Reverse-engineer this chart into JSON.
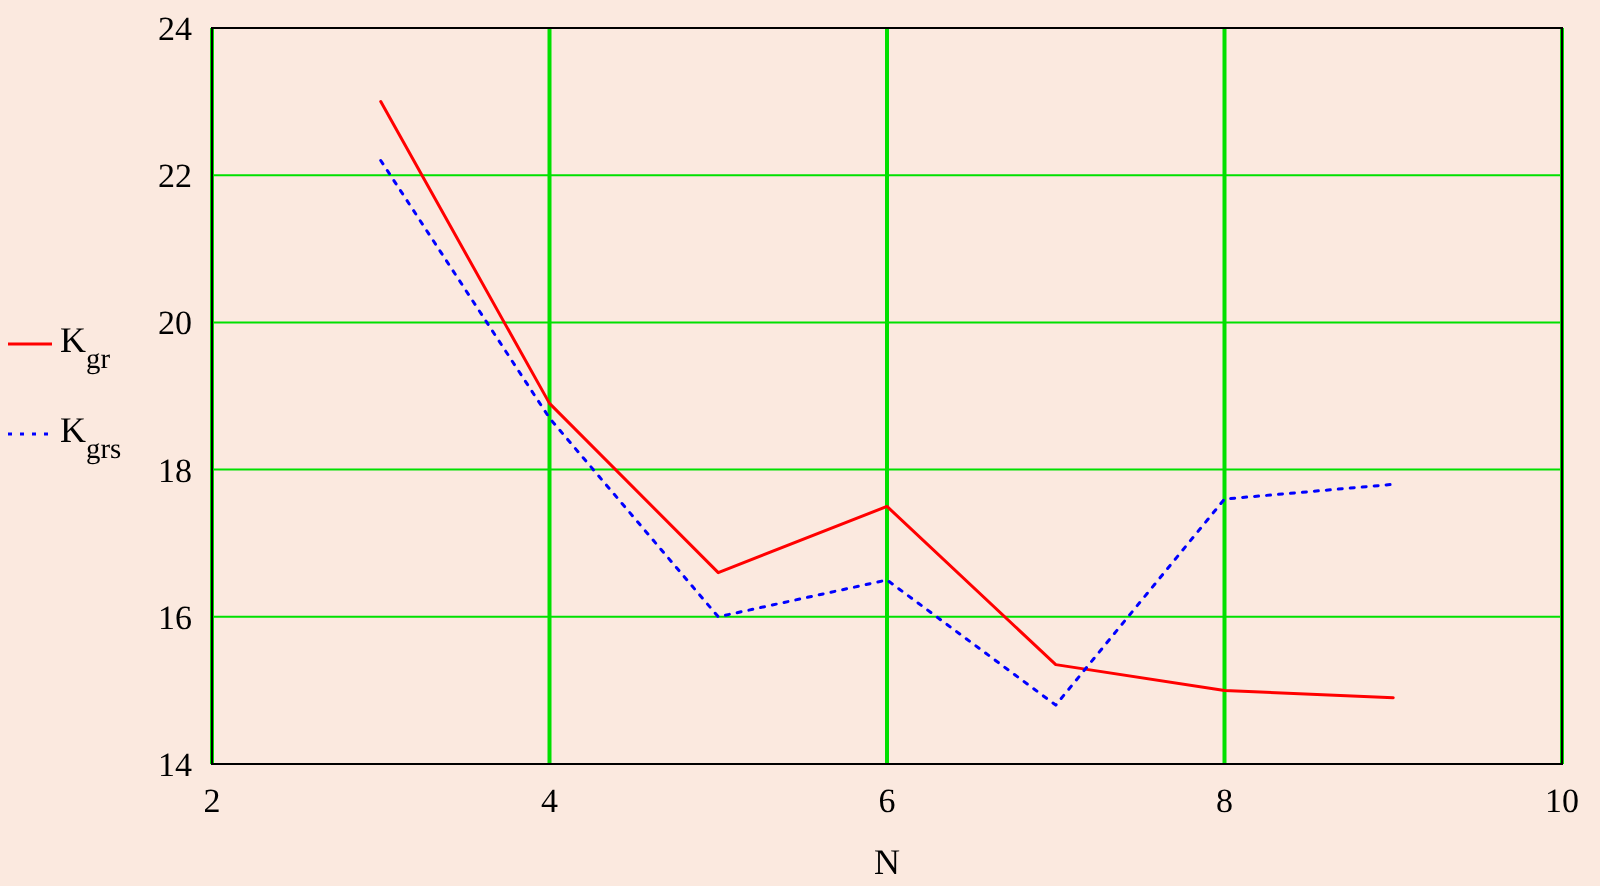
{
  "chart_data": {
    "type": "line",
    "xlabel": "N",
    "x": [
      3,
      4,
      5,
      6,
      7,
      8,
      9
    ],
    "xlim": [
      2,
      10
    ],
    "xticks": [
      2,
      4,
      6,
      8,
      10
    ],
    "ylim": [
      14,
      24
    ],
    "yticks": [
      14,
      16,
      18,
      20,
      22,
      24
    ],
    "grid": true,
    "legend": "left",
    "marker": "none",
    "series": [
      {
        "name": "K$_{gr}$",
        "color": "#ff0000",
        "line_style": "solid",
        "values": [
          23,
          18.9,
          16.6,
          17.5,
          15.35,
          15.0,
          14.9
        ]
      },
      {
        "name": "K$_{grs}$",
        "color": "#0000ff",
        "line_style": "dotted",
        "values": [
          22.2,
          18.7,
          16.0,
          16.5,
          14.8,
          17.6,
          17.8
        ]
      }
    ]
  }
}
